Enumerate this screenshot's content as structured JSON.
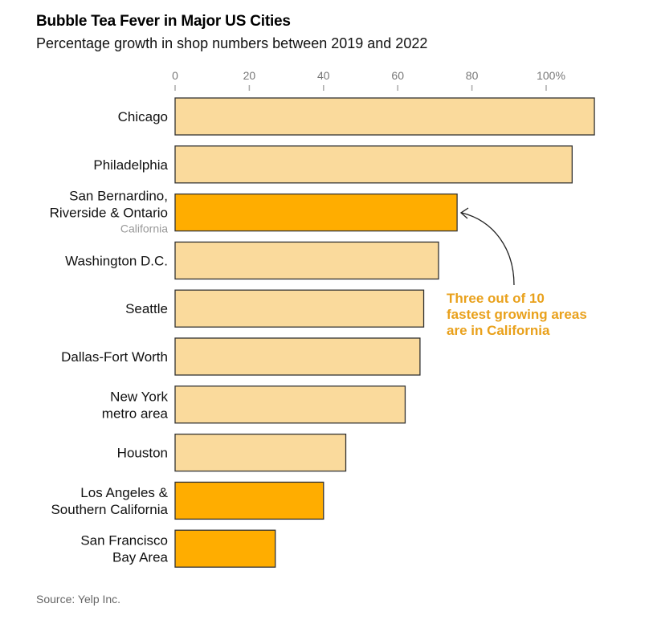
{
  "title": "Bubble Tea Fever in Major US Cities",
  "subtitle": "Percentage growth in shop numbers between 2019 and 2022",
  "source": "Source: Yelp Inc.",
  "colors": {
    "default": "#FADA9C",
    "california": "#FFAD00",
    "annotation": "#E9A11C"
  },
  "chart_data": {
    "type": "bar",
    "orientation": "horizontal",
    "title": "Bubble Tea Fever in Major US Cities",
    "xlabel": "Percentage growth in shop numbers between 2019 and 2022",
    "xlim": [
      0,
      115
    ],
    "ticks": [
      0,
      20,
      40,
      60,
      80,
      100
    ],
    "tick_labels": [
      "0",
      "20",
      "40",
      "60",
      "80",
      "100%"
    ],
    "categories": [
      {
        "lines": [
          "Chicago"
        ],
        "sub": "",
        "value": 113,
        "california": false
      },
      {
        "lines": [
          "Philadelphia"
        ],
        "sub": "",
        "value": 107,
        "california": false
      },
      {
        "lines": [
          "San Bernardino,",
          "Riverside & Ontario"
        ],
        "sub": "California",
        "value": 76,
        "california": true
      },
      {
        "lines": [
          "Washington D.C."
        ],
        "sub": "",
        "value": 71,
        "california": false
      },
      {
        "lines": [
          "Seattle"
        ],
        "sub": "",
        "value": 67,
        "california": false
      },
      {
        "lines": [
          "Dallas-Fort Worth"
        ],
        "sub": "",
        "value": 66,
        "california": false
      },
      {
        "lines": [
          "New York",
          "metro area"
        ],
        "sub": "",
        "value": 62,
        "california": false
      },
      {
        "lines": [
          "Houston"
        ],
        "sub": "",
        "value": 46,
        "california": false
      },
      {
        "lines": [
          "Los Angeles &",
          "Southern California"
        ],
        "sub": "",
        "value": 40,
        "california": true
      },
      {
        "lines": [
          "San Francisco",
          "Bay Area"
        ],
        "sub": "",
        "value": 27,
        "california": true
      }
    ],
    "annotation": [
      "Three out of 10",
      "fastest growing areas",
      "are in California"
    ]
  }
}
